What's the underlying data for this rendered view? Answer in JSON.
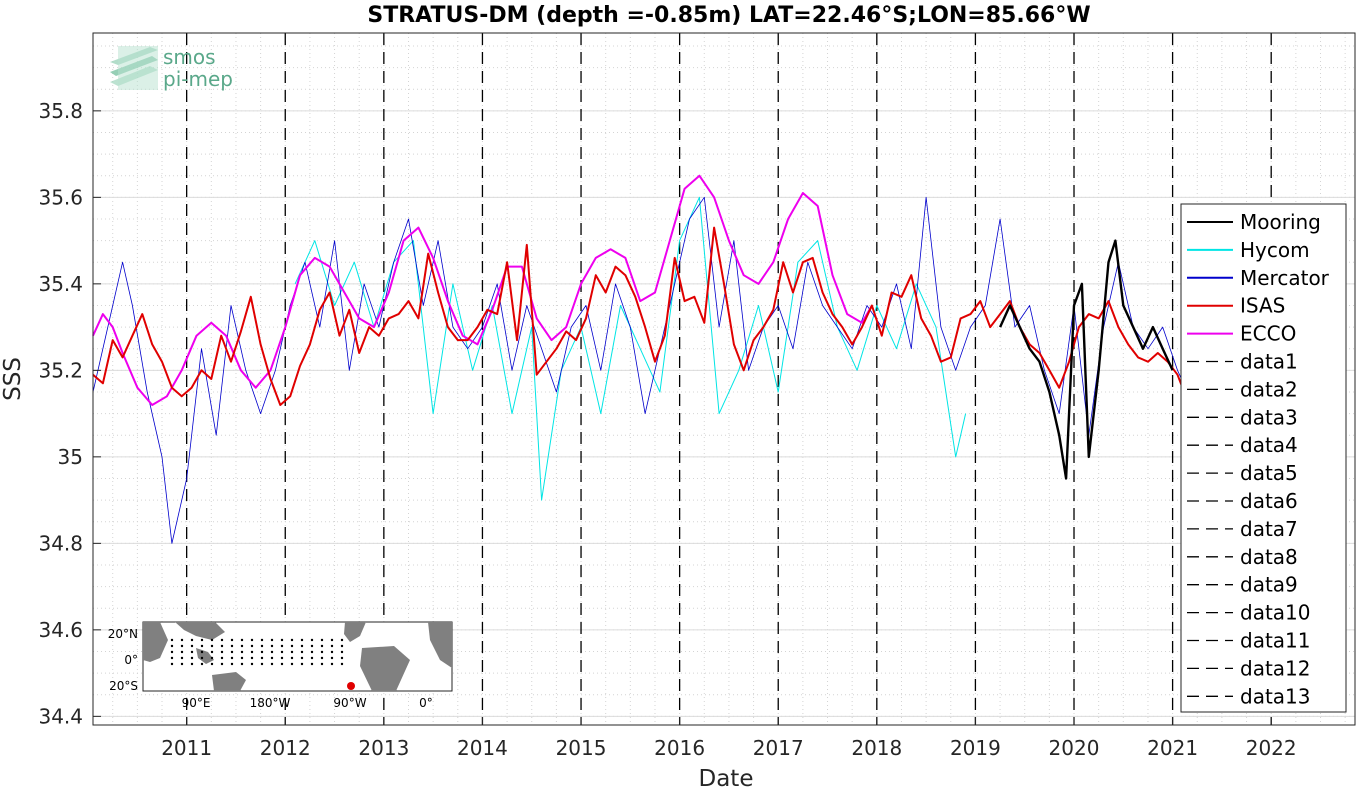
{
  "chart_data": {
    "type": "line",
    "title": "STRATUS-DM (depth =-0.85m) LAT=22.46°S;LON=85.66°W",
    "xlabel": "Date",
    "ylabel": "SSS",
    "xlim": [
      2010.05,
      2022.85
    ],
    "ylim": [
      34.38,
      35.98
    ],
    "x_ticks": [
      2011,
      2012,
      2013,
      2014,
      2015,
      2016,
      2017,
      2018,
      2019,
      2020,
      2021,
      2022
    ],
    "y_ticks": [
      34.4,
      34.6,
      34.8,
      35,
      35.2,
      35.4,
      35.6,
      35.8
    ],
    "y_tick_labels": [
      "34.4",
      "34.6",
      "34.8",
      "35",
      "35.2",
      "35.4",
      "35.6",
      "35.8"
    ],
    "grid": true,
    "legend_position": "right",
    "series": [
      {
        "name": "Mooring",
        "color": "#000000",
        "x": [
          2019.25,
          2019.35,
          2019.45,
          2019.55,
          2019.65,
          2019.75,
          2019.85,
          2019.92,
          2020.0,
          2020.08,
          2020.15,
          2020.25,
          2020.35,
          2020.42,
          2020.5,
          2020.6,
          2020.7,
          2020.8,
          2020.9,
          2021.0
        ],
        "y": [
          35.3,
          35.35,
          35.3,
          35.25,
          35.22,
          35.15,
          35.05,
          34.95,
          35.35,
          35.4,
          35.0,
          35.2,
          35.45,
          35.5,
          35.35,
          35.3,
          35.25,
          35.3,
          35.25,
          35.2
        ]
      },
      {
        "name": "Hycom",
        "color": "#00e5e5",
        "x": [
          2012.1,
          2012.3,
          2012.5,
          2012.7,
          2012.9,
          2013.1,
          2013.3,
          2013.5,
          2013.7,
          2013.9,
          2014.1,
          2014.3,
          2014.5,
          2014.6,
          2014.8,
          2015.0,
          2015.2,
          2015.4,
          2015.6,
          2015.8,
          2016.0,
          2016.2,
          2016.4,
          2016.6,
          2016.8,
          2017.0,
          2017.2,
          2017.4,
          2017.6,
          2017.8,
          2018.0,
          2018.2,
          2018.4,
          2018.6,
          2018.8,
          2018.9
        ],
        "y": [
          35.4,
          35.5,
          35.35,
          35.45,
          35.3,
          35.45,
          35.5,
          35.1,
          35.4,
          35.2,
          35.35,
          35.1,
          35.3,
          34.9,
          35.2,
          35.3,
          35.1,
          35.35,
          35.25,
          35.15,
          35.5,
          35.6,
          35.1,
          35.2,
          35.35,
          35.15,
          35.45,
          35.5,
          35.3,
          35.2,
          35.35,
          35.25,
          35.4,
          35.3,
          35.0,
          35.1
        ]
      },
      {
        "name": "Mercator",
        "color": "#0000cc",
        "x": [
          2010.05,
          2010.2,
          2010.35,
          2010.45,
          2010.6,
          2010.75,
          2010.85,
          2011.0,
          2011.15,
          2011.3,
          2011.45,
          2011.6,
          2011.75,
          2011.9,
          2012.05,
          2012.2,
          2012.35,
          2012.5,
          2012.65,
          2012.8,
          2012.95,
          2013.1,
          2013.25,
          2013.4,
          2013.55,
          2013.7,
          2013.85,
          2014.0,
          2014.15,
          2014.3,
          2014.45,
          2014.6,
          2014.75,
          2014.9,
          2015.05,
          2015.2,
          2015.35,
          2015.5,
          2015.65,
          2015.8,
          2015.95,
          2016.1,
          2016.25,
          2016.4,
          2016.55,
          2016.7,
          2016.85,
          2017.0,
          2017.15,
          2017.3,
          2017.45,
          2017.6,
          2017.75,
          2017.9,
          2018.05,
          2018.2,
          2018.35,
          2018.5,
          2018.65,
          2018.8,
          2018.95,
          2019.1,
          2019.25,
          2019.4,
          2019.55,
          2019.7,
          2019.85,
          2020.0,
          2020.15,
          2020.3,
          2020.45,
          2020.6,
          2020.75,
          2020.9,
          2021.05,
          2021.15
        ],
        "y": [
          35.15,
          35.3,
          35.45,
          35.35,
          35.15,
          35.0,
          34.8,
          34.95,
          35.25,
          35.05,
          35.35,
          35.2,
          35.1,
          35.2,
          35.35,
          35.45,
          35.3,
          35.5,
          35.2,
          35.4,
          35.3,
          35.45,
          35.55,
          35.35,
          35.5,
          35.3,
          35.25,
          35.3,
          35.4,
          35.2,
          35.35,
          35.25,
          35.15,
          35.3,
          35.35,
          35.2,
          35.4,
          35.3,
          35.1,
          35.25,
          35.4,
          35.55,
          35.6,
          35.3,
          35.5,
          35.2,
          35.3,
          35.35,
          35.25,
          35.45,
          35.35,
          35.3,
          35.25,
          35.35,
          35.3,
          35.4,
          35.25,
          35.6,
          35.3,
          35.2,
          35.3,
          35.35,
          35.55,
          35.3,
          35.35,
          35.2,
          35.1,
          35.35,
          35.05,
          35.3,
          35.45,
          35.3,
          35.25,
          35.3,
          35.2,
          35.15
        ]
      },
      {
        "name": "ISAS",
        "color": "#e00000",
        "x": [
          2010.05,
          2010.15,
          2010.25,
          2010.35,
          2010.45,
          2010.55,
          2010.65,
          2010.75,
          2010.85,
          2010.95,
          2011.05,
          2011.15,
          2011.25,
          2011.35,
          2011.45,
          2011.55,
          2011.65,
          2011.75,
          2011.85,
          2011.95,
          2012.05,
          2012.15,
          2012.25,
          2012.35,
          2012.45,
          2012.55,
          2012.65,
          2012.75,
          2012.85,
          2012.95,
          2013.05,
          2013.15,
          2013.25,
          2013.35,
          2013.45,
          2013.55,
          2013.65,
          2013.75,
          2013.85,
          2013.95,
          2014.05,
          2014.15,
          2014.25,
          2014.35,
          2014.45,
          2014.55,
          2014.65,
          2014.75,
          2014.85,
          2014.95,
          2015.05,
          2015.15,
          2015.25,
          2015.35,
          2015.45,
          2015.55,
          2015.65,
          2015.75,
          2015.85,
          2015.95,
          2016.05,
          2016.15,
          2016.25,
          2016.35,
          2016.45,
          2016.55,
          2016.65,
          2016.75,
          2016.85,
          2016.95,
          2017.05,
          2017.15,
          2017.25,
          2017.35,
          2017.45,
          2017.55,
          2017.65,
          2017.75,
          2017.85,
          2017.95,
          2018.05,
          2018.15,
          2018.25,
          2018.35,
          2018.45,
          2018.55,
          2018.65,
          2018.75,
          2018.85,
          2018.95,
          2019.05,
          2019.15,
          2019.25,
          2019.35,
          2019.45,
          2019.55,
          2019.65,
          2019.75,
          2019.85,
          2019.95,
          2020.05,
          2020.15,
          2020.25,
          2020.35,
          2020.45,
          2020.55,
          2020.65,
          2020.75,
          2020.85,
          2020.95,
          2021.05,
          2021.1
        ],
        "y": [
          35.19,
          35.17,
          35.27,
          35.23,
          35.28,
          35.33,
          35.26,
          35.22,
          35.16,
          35.14,
          35.16,
          35.2,
          35.18,
          35.28,
          35.22,
          35.29,
          35.37,
          35.26,
          35.18,
          35.12,
          35.14,
          35.21,
          35.26,
          35.34,
          35.38,
          35.28,
          35.34,
          35.24,
          35.3,
          35.28,
          35.32,
          35.33,
          35.36,
          35.32,
          35.47,
          35.38,
          35.3,
          35.27,
          35.27,
          35.3,
          35.34,
          35.33,
          35.45,
          35.27,
          35.49,
          35.19,
          35.22,
          35.25,
          35.29,
          35.27,
          35.32,
          35.42,
          35.38,
          35.44,
          35.42,
          35.37,
          35.3,
          35.22,
          35.28,
          35.46,
          35.36,
          35.37,
          35.31,
          35.53,
          35.4,
          35.26,
          35.2,
          35.27,
          35.3,
          35.34,
          35.45,
          35.38,
          35.45,
          35.46,
          35.38,
          35.33,
          35.3,
          35.26,
          35.3,
          35.35,
          35.28,
          35.38,
          35.37,
          35.42,
          35.32,
          35.28,
          35.22,
          35.23,
          35.32,
          35.33,
          35.36,
          35.3,
          35.33,
          35.36,
          35.3,
          35.26,
          35.24,
          35.2,
          35.16,
          35.22,
          35.3,
          35.33,
          35.32,
          35.36,
          35.3,
          35.26,
          35.23,
          35.22,
          35.24,
          35.22,
          35.19,
          35.16
        ]
      },
      {
        "name": "ECCO",
        "color": "#ee00ee",
        "x": [
          2010.05,
          2010.15,
          2010.25,
          2010.35,
          2010.5,
          2010.65,
          2010.8,
          2010.95,
          2011.1,
          2011.25,
          2011.4,
          2011.55,
          2011.7,
          2011.85,
          2012.0,
          2012.15,
          2012.3,
          2012.45,
          2012.6,
          2012.75,
          2012.9,
          2013.05,
          2013.2,
          2013.35,
          2013.5,
          2013.65,
          2013.8,
          2013.95,
          2014.1,
          2014.25,
          2014.4,
          2014.55,
          2014.7,
          2014.85,
          2015.0,
          2015.15,
          2015.3,
          2015.45,
          2015.6,
          2015.75,
          2015.9,
          2016.05,
          2016.2,
          2016.35,
          2016.5,
          2016.65,
          2016.8,
          2016.95,
          2017.1,
          2017.25,
          2017.4,
          2017.55,
          2017.7,
          2017.85,
          2017.95
        ],
        "y": [
          35.28,
          35.33,
          35.3,
          35.24,
          35.16,
          35.12,
          35.14,
          35.2,
          35.28,
          35.31,
          35.28,
          35.2,
          35.16,
          35.2,
          35.3,
          35.42,
          35.46,
          35.44,
          35.38,
          35.32,
          35.3,
          35.38,
          35.5,
          35.53,
          35.46,
          35.36,
          35.28,
          35.26,
          35.34,
          35.44,
          35.44,
          35.32,
          35.27,
          35.3,
          35.4,
          35.46,
          35.48,
          35.46,
          35.36,
          35.38,
          35.5,
          35.62,
          35.65,
          35.6,
          35.5,
          35.42,
          35.4,
          35.45,
          35.55,
          35.61,
          35.58,
          35.42,
          35.33,
          35.31,
          35.35
        ]
      }
    ],
    "reference_lines": {
      "x": [
        2011,
        2012,
        2013,
        2014,
        2015,
        2016,
        2017,
        2018,
        2019,
        2020,
        2021,
        2022
      ],
      "style": "dashed",
      "color": "#000000"
    },
    "legend": [
      "Mooring",
      "Hycom",
      "Mercator",
      "ISAS",
      "ECCO",
      "data1",
      "data2",
      "data3",
      "data4",
      "data5",
      "data6",
      "data7",
      "data8",
      "data9",
      "data10",
      "data11",
      "data12",
      "data13"
    ]
  },
  "logo": {
    "line1": "smos",
    "line2": "pi-mep",
    "color": "#5aa88a"
  },
  "inset_map": {
    "y_labels": [
      "20°N",
      "0°",
      "20°S"
    ],
    "x_labels": [
      "90°E",
      "180°W",
      "90°W",
      "0°"
    ],
    "land_color": "#808080",
    "marker_color": "#e00000"
  }
}
